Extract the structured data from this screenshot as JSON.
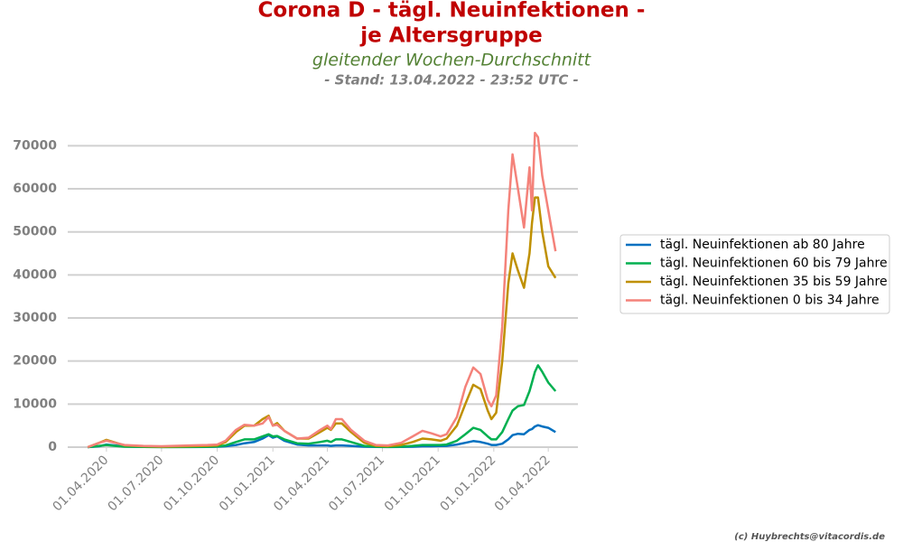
{
  "chart_data": {
    "type": "line",
    "title": [
      "Corona D - tägl. Neuinfektionen -",
      "je Altersgruppe"
    ],
    "subtitle": "gleitender Wochen-Durchschnitt",
    "note": "- Stand: 13.04.2022 - 23:52 UTC -",
    "credit": "(c) Huybrechts@vitacordis.de",
    "x": [
      "2020-03-01",
      "2020-03-20",
      "2020-04-01",
      "2020-04-15",
      "2020-05-01",
      "2020-06-01",
      "2020-07-01",
      "2020-08-15",
      "2020-09-15",
      "2020-10-01",
      "2020-10-15",
      "2020-11-01",
      "2020-11-15",
      "2020-12-01",
      "2020-12-15",
      "2020-12-25",
      "2021-01-01",
      "2021-01-08",
      "2021-01-20",
      "2021-02-10",
      "2021-03-01",
      "2021-03-20",
      "2021-04-01",
      "2021-04-07",
      "2021-04-15",
      "2021-04-25",
      "2021-05-10",
      "2021-06-01",
      "2021-06-20",
      "2021-07-10",
      "2021-08-01",
      "2021-08-20",
      "2021-09-05",
      "2021-09-20",
      "2021-10-05",
      "2021-10-15",
      "2021-11-01",
      "2021-11-15",
      "2021-11-28",
      "2021-12-10",
      "2021-12-22",
      "2021-12-28",
      "2022-01-05",
      "2022-01-15",
      "2022-01-25",
      "2022-02-01",
      "2022-02-10",
      "2022-02-20",
      "2022-03-01",
      "2022-03-05",
      "2022-03-10",
      "2022-03-15",
      "2022-03-22",
      "2022-04-01",
      "2022-04-13"
    ],
    "series": [
      {
        "name": "tägl. Neuinfektionen ab 80 Jahre",
        "color": "#0070c0",
        "values": [
          0,
          200,
          600,
          400,
          150,
          50,
          20,
          30,
          50,
          100,
          200,
          500,
          900,
          1200,
          2000,
          2800,
          2200,
          2500,
          1500,
          600,
          400,
          400,
          400,
          300,
          400,
          400,
          300,
          100,
          50,
          30,
          50,
          100,
          200,
          200,
          250,
          300,
          600,
          1000,
          1400,
          1200,
          800,
          500,
          500,
          800,
          1800,
          2800,
          3100,
          3000,
          4000,
          4200,
          4800,
          5100,
          4800,
          4500,
          3500
        ]
      },
      {
        "name": "tägl. Neuinfektionen 60 bis 79 Jahre",
        "color": "#00b050",
        "values": [
          0,
          300,
          500,
          300,
          100,
          50,
          30,
          50,
          80,
          150,
          400,
          1200,
          1800,
          1800,
          2500,
          3000,
          2500,
          2600,
          1800,
          900,
          800,
          1200,
          1500,
          1200,
          1800,
          1800,
          1200,
          300,
          100,
          50,
          100,
          300,
          500,
          500,
          500,
          600,
          1500,
          3000,
          4500,
          4000,
          2500,
          1800,
          1800,
          3500,
          6500,
          8500,
          9500,
          9800,
          13000,
          15000,
          17500,
          19000,
          17500,
          15000,
          13000
        ]
      },
      {
        "name": "tägl. Neuinfektionen 35 bis 59 Jahre",
        "color": "#bf9000",
        "values": [
          0,
          1000,
          1700,
          1100,
          400,
          200,
          100,
          200,
          300,
          400,
          1200,
          3500,
          5000,
          5000,
          6500,
          7300,
          5000,
          5600,
          3800,
          2000,
          2000,
          3500,
          4500,
          4000,
          5500,
          5500,
          3500,
          1000,
          300,
          200,
          500,
          1200,
          2000,
          1800,
          1500,
          2000,
          5000,
          10000,
          14500,
          13500,
          8500,
          6500,
          8000,
          20000,
          38000,
          45000,
          41000,
          37000,
          45000,
          52000,
          58000,
          58000,
          50000,
          42000,
          39300
        ]
      },
      {
        "name": "tägl. Neuinfektionen 0 bis 34 Jahre",
        "color": "#f4827a",
        "values": [
          0,
          1000,
          1500,
          1000,
          500,
          300,
          200,
          400,
          500,
          600,
          1500,
          4000,
          5200,
          5000,
          5500,
          7000,
          5000,
          5200,
          3800,
          2000,
          2200,
          4000,
          5000,
          4200,
          6500,
          6500,
          4000,
          1500,
          500,
          400,
          1000,
          2500,
          3800,
          3200,
          2500,
          3000,
          7000,
          14000,
          18500,
          17000,
          11000,
          9500,
          12000,
          28000,
          55000,
          68000,
          60000,
          51000,
          65000,
          55000,
          73000,
          72000,
          63000,
          55000,
          45500
        ]
      }
    ],
    "xlim": [
      "2020-01-28",
      "2022-05-20"
    ],
    "xticks": [
      {
        "value": "2020-04-01",
        "label": "01.04.2020"
      },
      {
        "value": "2020-07-01",
        "label": "01.07.2020"
      },
      {
        "value": "2020-10-01",
        "label": "01.10.2020"
      },
      {
        "value": "2021-01-01",
        "label": "01.01.2021"
      },
      {
        "value": "2021-04-01",
        "label": "01.04.2021"
      },
      {
        "value": "2021-07-01",
        "label": "01.07.2021"
      },
      {
        "value": "2021-10-01",
        "label": "01.10.2021"
      },
      {
        "value": "2022-01-01",
        "label": "01.01.2022"
      },
      {
        "value": "2022-04-01",
        "label": "01.04.2022"
      }
    ],
    "ylim": [
      0,
      77000
    ],
    "yticks": [
      0,
      10000,
      20000,
      30000,
      40000,
      50000,
      60000,
      70000
    ],
    "grid": true,
    "legend": "right"
  }
}
